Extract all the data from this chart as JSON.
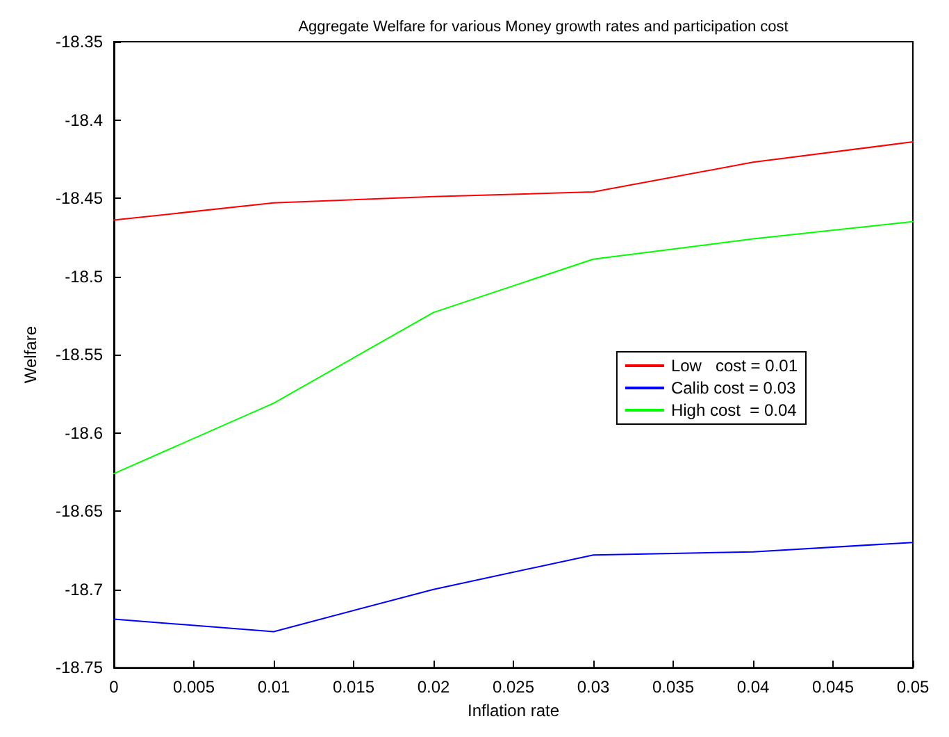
{
  "chart_data": {
    "type": "line",
    "title": "Aggregate Welfare for various Money growth rates and participation cost",
    "xlabel": "Inflation rate",
    "ylabel": "Welfare",
    "x": [
      0,
      0.01,
      0.02,
      0.03,
      0.04,
      0.05
    ],
    "series": [
      {
        "name": "Low   cost = 0.01",
        "color": "#ff0000",
        "values": [
          -18.464,
          -18.453,
          -18.449,
          -18.446,
          -18.427,
          -18.414
        ]
      },
      {
        "name": "Calib cost = 0.03",
        "color": "#0000ff",
        "values": [
          -18.719,
          -18.727,
          -18.7,
          -18.678,
          -18.676,
          -18.67
        ]
      },
      {
        "name": "High cost  = 0.04",
        "color": "#00ff00",
        "values": [
          -18.626,
          -18.581,
          -18.523,
          -18.489,
          -18.476,
          -18.465
        ]
      }
    ],
    "xlim": [
      0,
      0.05
    ],
    "xticks": [
      0,
      0.005,
      0.01,
      0.015,
      0.02,
      0.025,
      0.03,
      0.035,
      0.04,
      0.045,
      0.05
    ],
    "ylim": [
      -18.75,
      -18.35
    ],
    "yticks": [
      -18.75,
      -18.7,
      -18.65,
      -18.6,
      -18.55,
      -18.5,
      -18.45,
      -18.4,
      -18.35
    ],
    "grid": false,
    "legend": "right",
    "marker": "none",
    "line_style": "solid"
  }
}
